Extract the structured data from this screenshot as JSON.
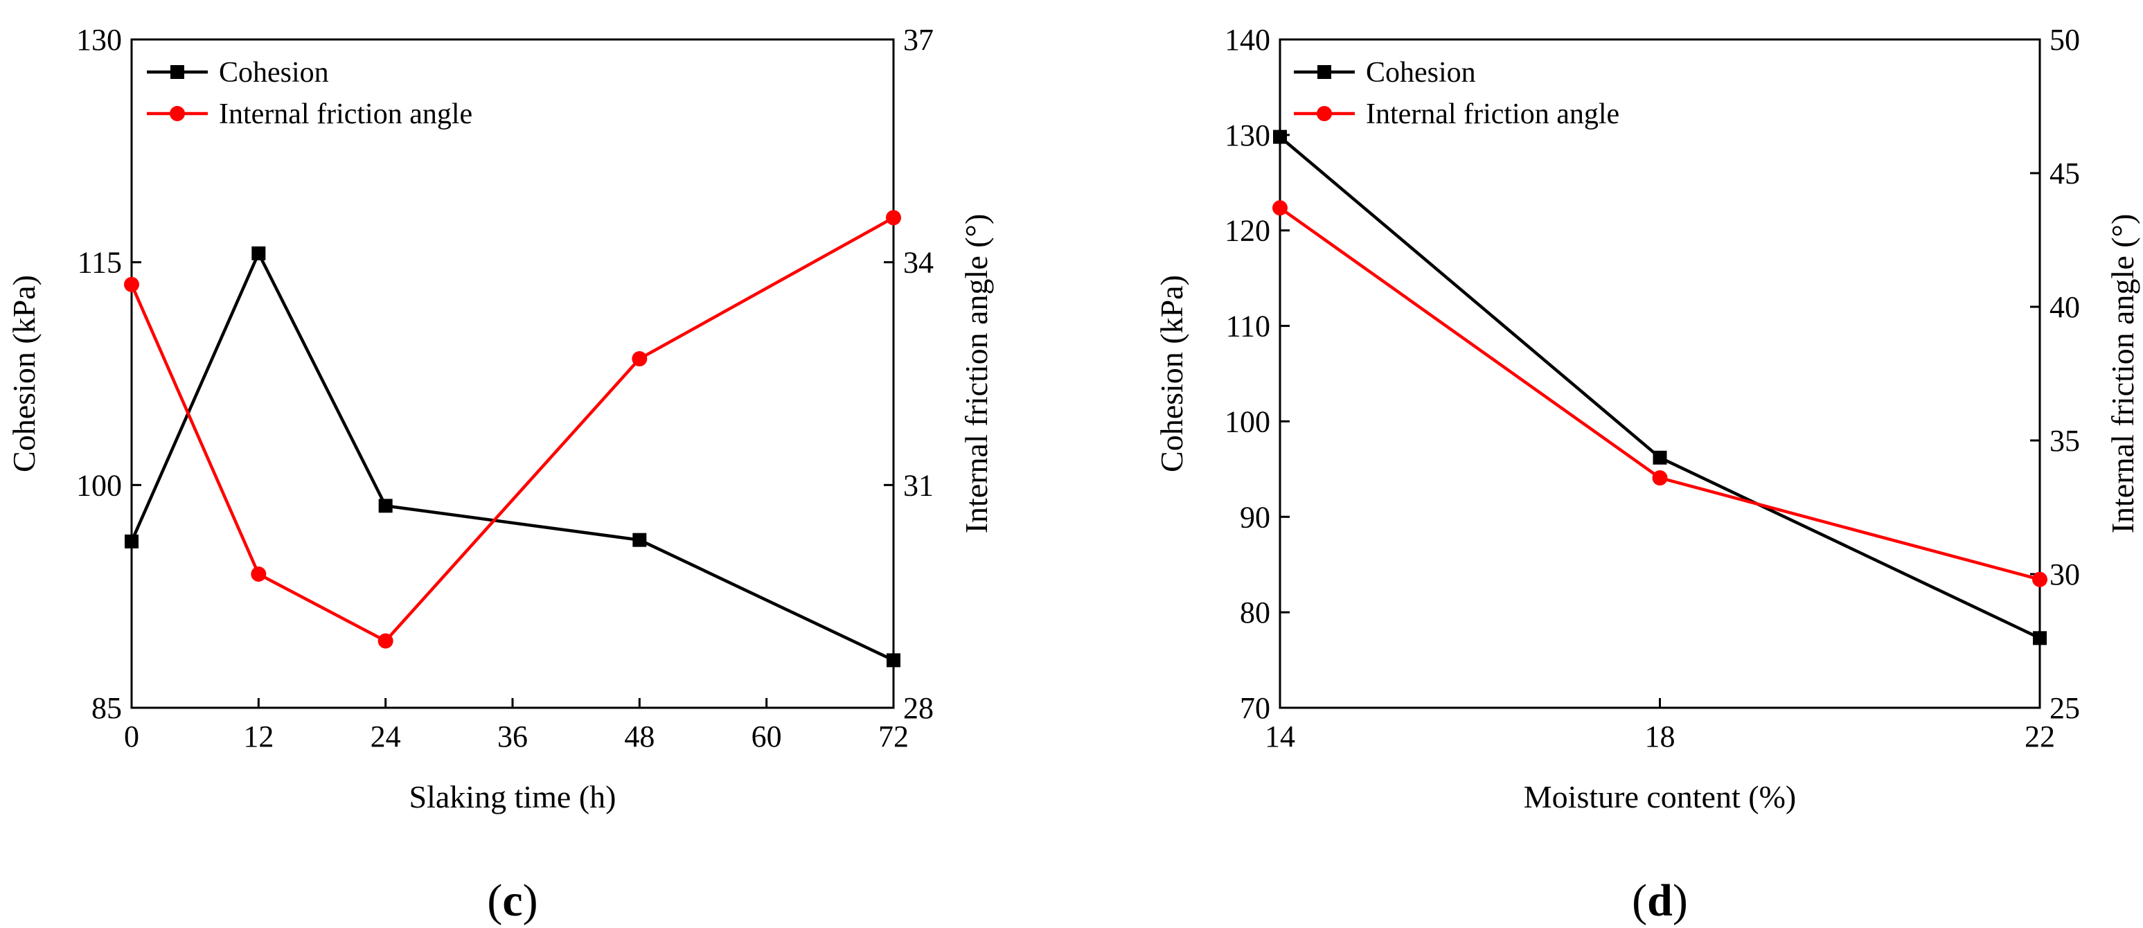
{
  "colors": {
    "cohesion": "#000000",
    "friction": "#ff0000",
    "axis": "#000000"
  },
  "chart_data": [
    {
      "type": "line",
      "panel_label": "c",
      "xlabel": "Slaking time (h)",
      "ylabel_left": "Cohesion (kPa)",
      "ylabel_right": "Internal friction angle (°)",
      "x_ticks": [
        0,
        12,
        24,
        36,
        48,
        60,
        72
      ],
      "xlim": [
        0,
        72
      ],
      "ylim_left": [
        85,
        130
      ],
      "yticks_left": [
        85,
        100,
        115,
        130
      ],
      "ylim_right": [
        28,
        37
      ],
      "yticks_right": [
        28,
        31,
        34,
        37
      ],
      "legend_location": "top-left",
      "series": [
        {
          "name": "Cohesion",
          "axis": "left",
          "marker": "square",
          "color": "#000000",
          "x": [
            0,
            12,
            24,
            48,
            72
          ],
          "values": [
            96.2,
            115.6,
            98.6,
            96.3,
            88.2
          ]
        },
        {
          "name": "Internal friction angle",
          "axis": "right",
          "marker": "circle",
          "color": "#ff0000",
          "x": [
            0,
            12,
            24,
            48,
            72
          ],
          "values": [
            33.7,
            29.8,
            28.9,
            32.7,
            34.6
          ]
        }
      ]
    },
    {
      "type": "line",
      "panel_label": "d",
      "xlabel": "Moisture content (%)",
      "ylabel_left": "Cohesion (kPa)",
      "ylabel_right": "Internal friction angle (°)",
      "x_ticks": [
        14,
        18,
        22
      ],
      "xlim": [
        14,
        22
      ],
      "ylim_left": [
        70,
        140
      ],
      "yticks_left": [
        70,
        80,
        90,
        100,
        110,
        120,
        130,
        140
      ],
      "ylim_right": [
        25,
        50
      ],
      "yticks_right": [
        25,
        30,
        35,
        40,
        45,
        50
      ],
      "legend_location": "top-left",
      "series": [
        {
          "name": "Cohesion",
          "axis": "left",
          "marker": "square",
          "color": "#000000",
          "x": [
            14,
            18,
            22
          ],
          "values": [
            129.8,
            96.2,
            77.3
          ]
        },
        {
          "name": "Internal friction angle",
          "axis": "right",
          "marker": "circle",
          "color": "#ff0000",
          "x": [
            14,
            18,
            22
          ],
          "values": [
            43.7,
            33.6,
            29.8
          ]
        }
      ]
    }
  ]
}
